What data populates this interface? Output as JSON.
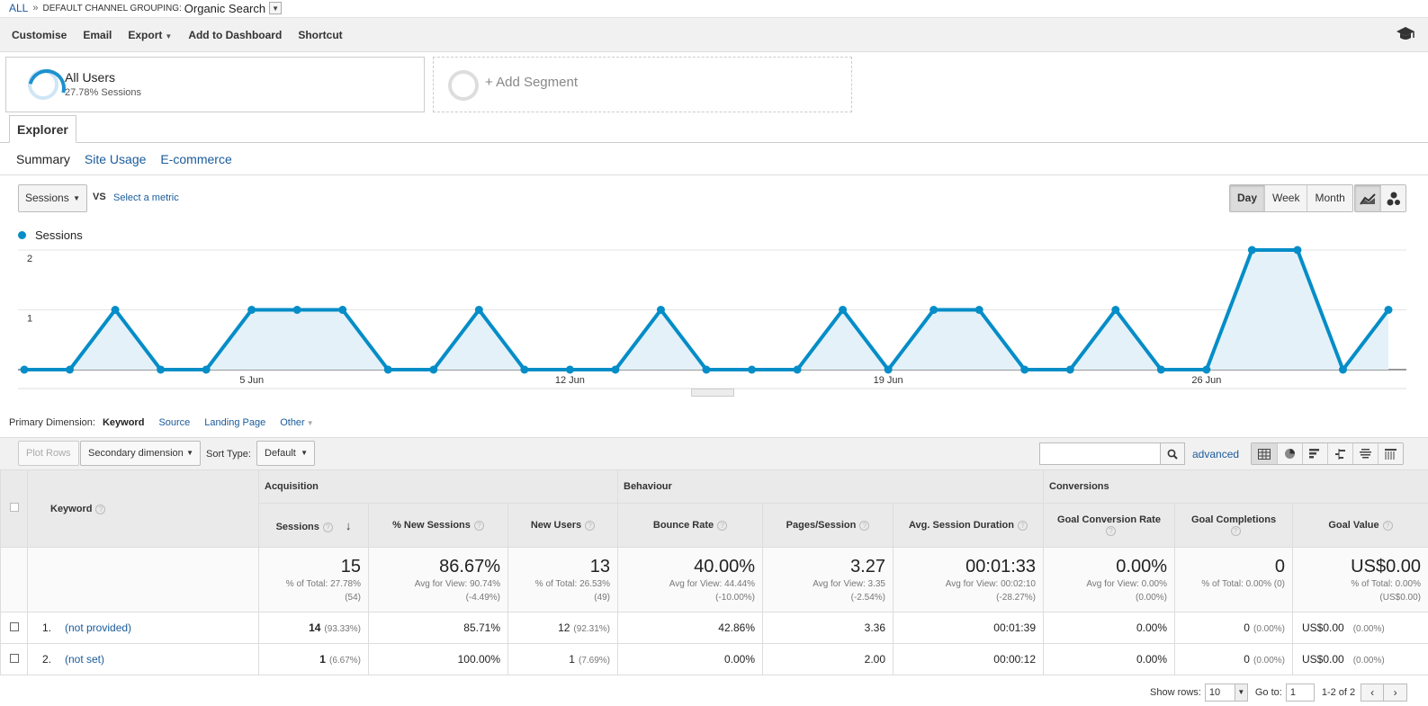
{
  "breadcrumb": {
    "all": "ALL",
    "separator": "»",
    "grouping_label": "DEFAULT CHANNEL GROUPING:",
    "grouping_value": "Organic Search"
  },
  "toolbar": {
    "customise": "Customise",
    "email": "Email",
    "export": "Export",
    "add_to_dashboard": "Add to Dashboard",
    "shortcut": "Shortcut"
  },
  "segments": {
    "all_users_title": "All Users",
    "all_users_sub": "27.78% Sessions",
    "add_segment": "+ Add Segment"
  },
  "explorer_tab": "Explorer",
  "subtabs": [
    "Summary",
    "Site Usage",
    "E-commerce"
  ],
  "chart_controls": {
    "metric": "Sessions",
    "vs": "VS",
    "select_metric": "Select a metric",
    "periods": [
      "Day",
      "Week",
      "Month"
    ],
    "active_period": "Day"
  },
  "chart_data": {
    "type": "area",
    "series": [
      {
        "name": "Sessions",
        "values": [
          0,
          0,
          1,
          0,
          0,
          1,
          1,
          1,
          0,
          0,
          1,
          0,
          0,
          0,
          1,
          0,
          0,
          0,
          1,
          0,
          1,
          1,
          0,
          0,
          1,
          0,
          0,
          2,
          2,
          0,
          1
        ]
      }
    ],
    "x_tick_labels": [
      "5 Jun",
      "12 Jun",
      "19 Jun",
      "26 Jun"
    ],
    "y_tick_labels": [
      "1",
      "2"
    ],
    "ylim": [
      0,
      2
    ],
    "grid": true,
    "color": "#058dc7",
    "fill": "#e4f1f9"
  },
  "primary_dimension": {
    "label": "Primary Dimension:",
    "active": "Keyword",
    "links": [
      "Source",
      "Landing Page"
    ],
    "other": "Other"
  },
  "table_controls": {
    "plot_rows": "Plot Rows",
    "secondary_dimension": "Secondary dimension",
    "sort_type_label": "Sort Type:",
    "sort_type": "Default",
    "search_value": "",
    "advanced": "advanced"
  },
  "table": {
    "groups": {
      "acquisition": "Acquisition",
      "behaviour": "Behaviour",
      "conversions": "Conversions"
    },
    "headers": {
      "keyword": "Keyword",
      "sessions": "Sessions",
      "new_sessions": "% New Sessions",
      "new_users": "New Users",
      "bounce_rate": "Bounce Rate",
      "pages_session": "Pages/Session",
      "avg_duration": "Avg. Session Duration",
      "goal_conv_rate": "Goal Conversion Rate",
      "goal_completions": "Goal Completions",
      "goal_value": "Goal Value"
    },
    "totals": {
      "sessions": {
        "big": "15",
        "l1": "% of Total: 27.78%",
        "l2": "(54)"
      },
      "new_sessions": {
        "big": "86.67%",
        "l1": "Avg for View: 90.74%",
        "l2": "(-4.49%)"
      },
      "new_users": {
        "big": "13",
        "l1": "% of Total: 26.53%",
        "l2": "(49)"
      },
      "bounce_rate": {
        "big": "40.00%",
        "l1": "Avg for View: 44.44%",
        "l2": "(-10.00%)"
      },
      "pages_session": {
        "big": "3.27",
        "l1": "Avg for View: 3.35",
        "l2": "(-2.54%)"
      },
      "avg_duration": {
        "big": "00:01:33",
        "l1": "Avg for View: 00:02:10",
        "l2": "(-28.27%)"
      },
      "goal_conv_rate": {
        "big": "0.00%",
        "l1": "Avg for View: 0.00%",
        "l2": "(0.00%)"
      },
      "goal_completions": {
        "big": "0",
        "l1": "% of Total: 0.00% (0)",
        "l2": ""
      },
      "goal_value": {
        "big": "US$0.00",
        "l1": "% of Total: 0.00%",
        "l2": "(US$0.00)"
      }
    },
    "rows": [
      {
        "index": "1.",
        "keyword": "(not provided)",
        "sessions": "14",
        "sessions_pct": "(93.33%)",
        "new_sessions": "85.71%",
        "new_users": "12",
        "new_users_pct": "(92.31%)",
        "bounce_rate": "42.86%",
        "pages_session": "3.36",
        "avg_duration": "00:01:39",
        "goal_conv_rate": "0.00%",
        "goal_completions": "0",
        "goal_completions_pct": "(0.00%)",
        "goal_value": "US$0.00",
        "goal_value_pct": "(0.00%)"
      },
      {
        "index": "2.",
        "keyword": "(not set)",
        "sessions": "1",
        "sessions_pct": "(6.67%)",
        "new_sessions": "100.00%",
        "new_users": "1",
        "new_users_pct": "(7.69%)",
        "bounce_rate": "0.00%",
        "pages_session": "2.00",
        "avg_duration": "00:00:12",
        "goal_conv_rate": "0.00%",
        "goal_completions": "0",
        "goal_completions_pct": "(0.00%)",
        "goal_value": "US$0.00",
        "goal_value_pct": "(0.00%)"
      }
    ]
  },
  "pager": {
    "show_rows_label": "Show rows:",
    "show_rows": "10",
    "goto_label": "Go to:",
    "goto_value": "1",
    "range": "1-2 of 2"
  }
}
